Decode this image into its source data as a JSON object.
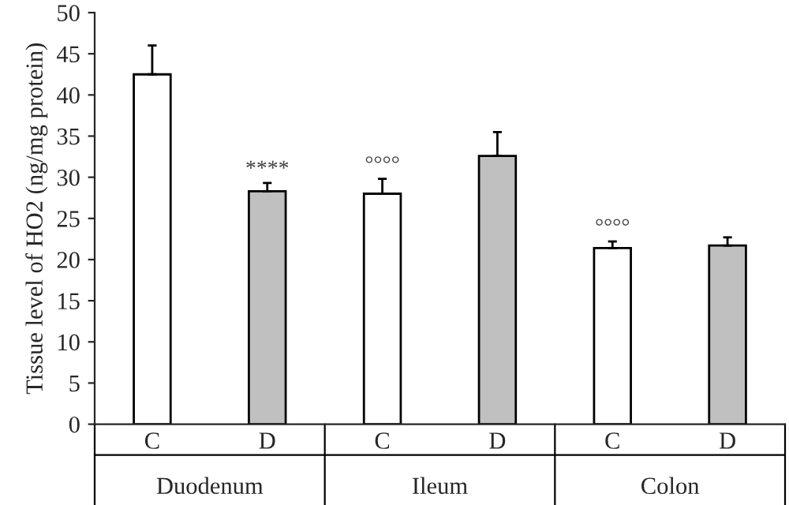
{
  "chart_data": {
    "type": "bar",
    "ylabel": "Tissue level of HO2 (ng/mg protein)",
    "categories": [
      "C",
      "D",
      "C",
      "D",
      "C",
      "D"
    ],
    "series": [
      {
        "colors": [
          "#ffffff",
          "#c0c0c0",
          "#ffffff",
          "#c0c0c0",
          "#ffffff",
          "#c0c0c0"
        ],
        "values": [
          42.5,
          28.3,
          28.0,
          32.6,
          21.4,
          21.7
        ],
        "errors": [
          [
            42.5,
            46.0
          ],
          [
            28.3,
            29.3
          ],
          [
            28.0,
            29.8
          ],
          [
            32.6,
            35.5
          ],
          [
            21.4,
            22.2
          ],
          [
            21.7,
            22.7
          ]
        ],
        "value_labels": [
          null,
          "****",
          "°°°°",
          null,
          "°°°°",
          null
        ]
      }
    ],
    "annotations": [
      "Duodenum",
      "Ileum",
      "Colon"
    ],
    "ylim": [
      0,
      50
    ],
    "yticks": [
      0,
      5,
      10,
      15,
      20,
      25,
      30,
      35,
      40,
      45,
      50
    ],
    "grid": false,
    "legend": false
  }
}
